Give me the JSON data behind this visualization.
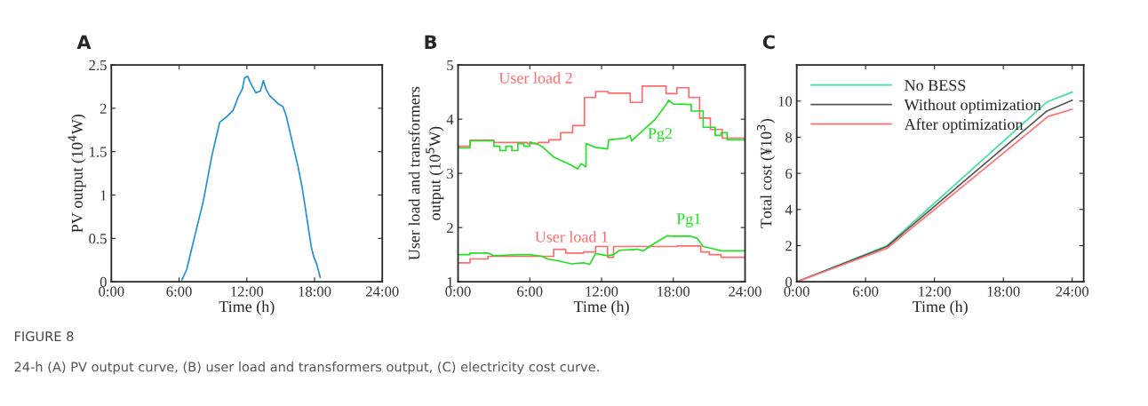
{
  "chart_data": [
    {
      "type": "line",
      "title": "A",
      "xlabel": "Time (h)",
      "ylabel": "PV output (10$^{4}$W)",
      "xlim": [
        0,
        24
      ],
      "ylim": [
        0,
        2.5
      ],
      "xticks": [
        {
          "value": 0,
          "label": "0:00"
        },
        {
          "value": 6,
          "label": "6:00"
        },
        {
          "value": 12,
          "label": "12:00"
        },
        {
          "value": 18,
          "label": "18:00"
        },
        {
          "value": 24,
          "label": "24:00"
        }
      ],
      "yticks": [
        0,
        0.5,
        1,
        1.5,
        2,
        2.5
      ],
      "grid": false,
      "legend": false,
      "series": [
        {
          "color": "#1f8fd6",
          "x": [
            6.25,
            6.67,
            7.3,
            8.13,
            8.9,
            9.6,
            10.2,
            10.8,
            11.2,
            11.6,
            11.8,
            12.08,
            12.3,
            12.5,
            12.8,
            13.2,
            13.47,
            13.7,
            14.0,
            14.4,
            14.8,
            15.2,
            15.5,
            16.1,
            16.5,
            16.9,
            17.3,
            17.7,
            17.9,
            18.2,
            18.5
          ],
          "values": [
            0.02,
            0.14,
            0.48,
            0.92,
            1.45,
            1.84,
            1.9,
            1.98,
            2.12,
            2.22,
            2.35,
            2.37,
            2.3,
            2.25,
            2.18,
            2.2,
            2.32,
            2.22,
            2.15,
            2.1,
            2.05,
            2.02,
            1.91,
            1.57,
            1.35,
            1.09,
            0.75,
            0.41,
            0.3,
            0.2,
            0.05
          ]
        }
      ]
    },
    {
      "type": "line",
      "title": "B",
      "xlabel": "Time (h)",
      "ylabel": "User load and transformers\noutput (10$^{5}$W)",
      "xlim": [
        0,
        24
      ],
      "ylim": [
        1,
        5
      ],
      "xticks": [
        {
          "value": 0,
          "label": "0:00"
        },
        {
          "value": 6,
          "label": "6:00"
        },
        {
          "value": 12,
          "label": "12:00"
        },
        {
          "value": 18,
          "label": "18:00"
        },
        {
          "value": 24,
          "label": "24:00"
        }
      ],
      "yticks": [
        1,
        2,
        3,
        4,
        5
      ],
      "grid": false,
      "legend": false,
      "series": [
        {
          "name": "User load 2",
          "color": "#ff6b6b",
          "x": [
            0,
            1,
            1,
            3,
            3,
            5.8,
            5.8,
            6.7,
            6.7,
            7.6,
            7.6,
            8.58,
            8.58,
            9.58,
            9.58,
            10.57,
            10.57,
            11.5,
            11.5,
            12.56,
            12.56,
            14.4,
            14.4,
            15.4,
            15.4,
            17.4,
            17.4,
            18.3,
            18.3,
            19.3,
            19.3,
            20.2,
            20.2,
            21.1,
            21.1,
            22.1,
            22.1,
            24
          ],
          "values": [
            3.5,
            3.5,
            3.61,
            3.61,
            3.57,
            3.57,
            3.55,
            3.55,
            3.57,
            3.57,
            3.62,
            3.62,
            3.75,
            3.75,
            3.88,
            3.88,
            4.4,
            4.4,
            4.51,
            4.51,
            4.48,
            4.48,
            4.31,
            4.31,
            4.61,
            4.61,
            4.47,
            4.47,
            4.58,
            4.58,
            4.4,
            4.4,
            4.02,
            4.02,
            3.81,
            3.81,
            3.65,
            3.65
          ]
        },
        {
          "name": "Pg2",
          "color": "#22e022",
          "x": [
            0,
            1,
            1,
            3,
            3,
            3.5,
            3.5,
            4.0,
            4.0,
            4.5,
            4.5,
            5.0,
            5.0,
            5.5,
            5.5,
            6.0,
            6.0,
            6.5,
            7.0,
            7.5,
            8.0,
            8.5,
            9.0,
            9.5,
            10.0,
            10.3,
            10.7,
            10.7,
            11.5,
            12.5,
            12.6,
            14.0,
            14.4,
            14.5,
            15.5,
            16.5,
            17.5,
            17.6,
            18.0,
            19.5,
            19.5,
            20.5,
            20.5,
            21.5,
            21.5,
            22.0,
            22.0,
            22.5,
            22.5,
            24
          ],
          "values": [
            3.47,
            3.47,
            3.6,
            3.6,
            3.5,
            3.5,
            3.42,
            3.42,
            3.5,
            3.5,
            3.42,
            3.42,
            3.55,
            3.55,
            3.5,
            3.5,
            3.58,
            3.55,
            3.5,
            3.4,
            3.3,
            3.25,
            3.2,
            3.15,
            3.08,
            3.18,
            3.12,
            3.55,
            3.48,
            3.45,
            3.62,
            3.65,
            3.7,
            3.6,
            3.8,
            4.0,
            4.3,
            4.35,
            4.28,
            4.27,
            4.15,
            4.15,
            3.85,
            3.85,
            3.7,
            3.7,
            3.75,
            3.75,
            3.62,
            3.62
          ]
        },
        {
          "name": "User load 1",
          "color": "#ff6b6b",
          "x": [
            0,
            1,
            1,
            2.5,
            2.5,
            8,
            8,
            9,
            9,
            10.5,
            10.5,
            11.5,
            11.5,
            12.5,
            12.5,
            13,
            13,
            18.3,
            18.3,
            20.3,
            20.3,
            21,
            21,
            22,
            22,
            24
          ],
          "values": [
            1.35,
            1.35,
            1.42,
            1.42,
            1.47,
            1.47,
            1.6,
            1.6,
            1.53,
            1.53,
            1.55,
            1.55,
            1.65,
            1.65,
            1.45,
            1.45,
            1.65,
            1.65,
            1.66,
            1.66,
            1.55,
            1.55,
            1.5,
            1.5,
            1.45,
            1.45
          ]
        },
        {
          "name": "Pg1",
          "color": "#22e022",
          "x": [
            0,
            1,
            1,
            2.5,
            3,
            4,
            5,
            6,
            7,
            7.5,
            8.5,
            9.5,
            10.5,
            11,
            11.5,
            12.5,
            13,
            13.5,
            15,
            15.5,
            16,
            17.5,
            18,
            19.5,
            20,
            20.5,
            21.5,
            22,
            24
          ],
          "values": [
            1.5,
            1.5,
            1.53,
            1.53,
            1.48,
            1.49,
            1.5,
            1.5,
            1.47,
            1.42,
            1.38,
            1.33,
            1.35,
            1.32,
            1.52,
            1.48,
            1.5,
            1.58,
            1.6,
            1.57,
            1.65,
            1.85,
            1.84,
            1.84,
            1.8,
            1.65,
            1.6,
            1.57,
            1.57
          ]
        }
      ]
    },
    {
      "type": "line",
      "title": "C",
      "xlabel": "Time (h)",
      "ylabel": "Total cost (¥10$^{3}$)",
      "xlim": [
        0,
        25
      ],
      "ylim": [
        0,
        12
      ],
      "xticks": [
        {
          "value": 0,
          "label": "0:00"
        },
        {
          "value": 6,
          "label": "6:00"
        },
        {
          "value": 12,
          "label": "12:00"
        },
        {
          "value": 18,
          "label": "18:00"
        },
        {
          "value": 24,
          "label": "24:00"
        }
      ],
      "yticks": [
        0,
        2,
        4,
        6,
        8,
        10
      ],
      "grid": false,
      "legend": "top left",
      "series": [
        {
          "name": "No BESS",
          "color": "#40e0a0",
          "x": [
            0,
            7.87,
            21.8,
            24
          ],
          "values": [
            0,
            2.0,
            9.95,
            10.5
          ]
        },
        {
          "name": "Without optimization",
          "color": "#555555",
          "x": [
            0,
            7.87,
            21.8,
            24
          ],
          "values": [
            0,
            1.95,
            9.45,
            10.05
          ]
        },
        {
          "name": "After optimization",
          "color": "#ff7070",
          "x": [
            0,
            7.87,
            21.9,
            24
          ],
          "values": [
            0,
            1.85,
            9.15,
            9.55
          ]
        }
      ]
    },
    {
      "type": "other",
      "title": "FIGURE 8",
      "annotations": [
        "24-h (A) PV output curve, (B) user load and transformers output, (C) electricity cost curve."
      ]
    }
  ]
}
